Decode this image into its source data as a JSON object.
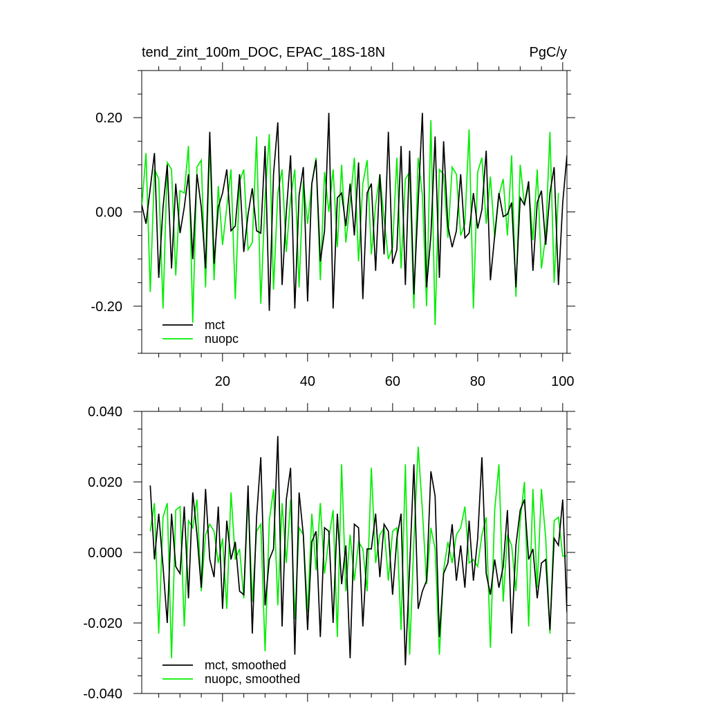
{
  "chart_data": [
    {
      "type": "line",
      "title": "tend_zint_100m_DOC, EPAC_18S-18N",
      "units": "PgC/y",
      "xlim": [
        1,
        101
      ],
      "ylim": [
        -0.3,
        0.3
      ],
      "x_ticks": [
        20,
        40,
        60,
        80,
        100
      ],
      "y_ticks": [
        0.2,
        0.0,
        -0.2
      ],
      "y_tick_labels": [
        "0.20",
        "0.00",
        "-0.20"
      ],
      "legend": {
        "placement": "bottom-left"
      },
      "colors": {
        "mct": "#000000",
        "nuopc": "#00ee00"
      },
      "x_start": 1,
      "x_step": 1,
      "series": [
        {
          "name": "mct",
          "color": "#000000",
          "values": [
            0.015,
            -0.025,
            0.05,
            0.125,
            -0.14,
            0.01,
            0.1,
            -0.12,
            0.06,
            -0.045,
            0.01,
            0.08,
            -0.1,
            0.08,
            0.01,
            -0.12,
            0.17,
            -0.11,
            0.01,
            0.04,
            0.09,
            -0.04,
            -0.03,
            0.08,
            -0.085,
            -0.005,
            0.05,
            -0.04,
            -0.045,
            0.14,
            -0.21,
            0.08,
            0.19,
            -0.155,
            0.0,
            0.12,
            -0.205,
            0.035,
            0.095,
            -0.19,
            0.06,
            0.11,
            -0.105,
            -0.04,
            0.21,
            -0.205,
            0.03,
            0.04,
            -0.03,
            0.06,
            -0.05,
            0.105,
            -0.185,
            0.04,
            0.06,
            -0.125,
            0.08,
            -0.09,
            0.17,
            -0.11,
            -0.08,
            0.14,
            -0.155,
            0.13,
            -0.175,
            0.02,
            0.21,
            -0.16,
            -0.05,
            0.16,
            -0.14,
            0.15,
            -0.03,
            -0.075,
            -0.04,
            0.08,
            -0.055,
            -0.045,
            0.04,
            -0.035,
            0.005,
            0.13,
            -0.145,
            -0.05,
            0.04,
            -0.01,
            -0.005,
            0.02,
            -0.16,
            0.03,
            0.015,
            0.065,
            -0.125,
            0.02,
            0.045,
            -0.07,
            0.04,
            0.095,
            -0.155,
            0.02,
            0.12,
            -0.165
          ]
        },
        {
          "name": "nuopc",
          "color": "#00ee00",
          "values": [
            0.01,
            0.125,
            -0.17,
            0.09,
            0.07,
            -0.205,
            0.105,
            0.09,
            -0.135,
            0.045,
            0.04,
            0.14,
            -0.235,
            0.095,
            0.11,
            -0.16,
            0.145,
            -0.145,
            0.055,
            -0.07,
            0.01,
            0.09,
            -0.185,
            0.065,
            0.09,
            -0.08,
            -0.065,
            0.16,
            -0.195,
            0.03,
            0.165,
            -0.165,
            0.04,
            0.09,
            -0.085,
            0.03,
            0.09,
            -0.16,
            0.065,
            -0.025,
            0.06,
            0.115,
            -0.145,
            0.085,
            0.0,
            0.09,
            -0.075,
            0.1,
            -0.065,
            0.02,
            0.115,
            -0.105,
            0.06,
            0.11,
            -0.09,
            0.015,
            0.08,
            -0.015,
            -0.1,
            -0.075,
            0.115,
            -0.12,
            0.07,
            0.085,
            -0.205,
            0.115,
            0.035,
            -0.2,
            0.195,
            -0.24,
            0.09,
            0.08,
            -0.055,
            0.095,
            0.08,
            -0.05,
            -0.025,
            0.175,
            -0.205,
            0.085,
            0.115,
            -0.025,
            0.075,
            -0.055,
            0.035,
            0.07,
            -0.05,
            0.12,
            -0.18,
            0.1,
            0.015,
            0.055,
            -0.06,
            0.09,
            -0.12,
            -0.05,
            0.17,
            -0.15,
            0.04
          ]
        }
      ]
    },
    {
      "type": "line",
      "title": "",
      "xlim": [
        1,
        101
      ],
      "ylim": [
        -0.04,
        0.04
      ],
      "x_ticks": [
        20,
        40,
        60,
        80,
        100
      ],
      "y_ticks": [
        0.04,
        0.02,
        0.0,
        -0.02,
        -0.04
      ],
      "y_tick_labels": [
        "0.040",
        "0.020",
        "0.000",
        "-0.020",
        "-0.040"
      ],
      "legend": {
        "placement": "bottom-left"
      },
      "x_start": 3,
      "x_step": 1,
      "series": [
        {
          "name": "mct, smoothed",
          "color": "#000000",
          "values": [
            0.019,
            -0.002,
            0.011,
            -0.004,
            -0.02,
            0.011,
            -0.004,
            -0.006,
            0.013,
            -0.013,
            0.017,
            0.005,
            -0.01,
            0.018,
            -0.002,
            -0.007,
            0.013,
            -0.016,
            0.009,
            -0.002,
            0.003,
            -0.011,
            -0.012,
            0.019,
            -0.023,
            0.01,
            0.027,
            -0.015,
            -0.002,
            0.001,
            0.033,
            -0.021,
            0.015,
            0.024,
            -0.029,
            0.017,
            0.005,
            -0.022,
            0.003,
            0.006,
            -0.024,
            0.007,
            0.006,
            -0.02,
            0.011,
            -0.009,
            0.002,
            -0.03,
            0.008,
            0.007,
            -0.021,
            0.001,
            0.001,
            0.011,
            -0.007,
            0.008,
            0.006,
            -0.012,
            0.004,
            0.011,
            -0.032,
            -0.004,
            0.025,
            -0.016,
            -0.011,
            -0.008,
            0.023,
            0.016,
            -0.024,
            -0.006,
            -0.003,
            0.008,
            -0.008,
            0.002,
            -0.01,
            0.009,
            -0.008,
            0.004,
            0.027,
            -0.006,
            -0.012,
            -0.002,
            -0.01,
            -0.004,
            0.012,
            -0.023,
            0.002,
            0.012,
            0.015,
            -0.002,
            0.001,
            -0.013,
            -0.003,
            -0.002,
            -0.022,
            0.004,
            0.002,
            0.015,
            -0.017
          ]
        },
        {
          "name": "nuopc, smoothed",
          "color": "#00ee00",
          "values": [
            0.006,
            0.014,
            -0.023,
            0.01,
            0.014,
            -0.03,
            0.012,
            0.013,
            -0.021,
            0.009,
            0.007,
            0.015,
            -0.011,
            0.005,
            0.008,
            0.006,
            -0.003,
            0.004,
            -0.016,
            0.017,
            -0.002,
            0.001,
            -0.013,
            0.016,
            -0.014,
            0.006,
            0.008,
            -0.028,
            0.009,
            0.018,
            -0.015,
            0.014,
            -0.003,
            0.015,
            -0.019,
            0.007,
            0.005,
            -0.017,
            0.011,
            -0.005,
            0.014,
            -0.006,
            0.004,
            0.012,
            -0.024,
            0.025,
            -0.011,
            0.005,
            -0.008,
            0.003,
            0.001,
            -0.011,
            0.024,
            -0.003,
            0.005,
            0.007,
            -0.008,
            0.006,
            0.007,
            -0.022,
            0.025,
            -0.029,
            0.003,
            0.03,
            0.012,
            -0.009,
            0.007,
            0.001,
            -0.029,
            -0.005,
            0.003,
            -0.003,
            0.005,
            0.007,
            0.013,
            -0.003,
            -0.002,
            -0.004,
            0.005,
            0.01,
            -0.027,
            0.012,
            0.025,
            -0.014,
            0.005,
            0.002,
            -0.011,
            0.009,
            0.02,
            -0.021,
            0.018,
            -0.01,
            0.018,
            0.004,
            -0.023,
            0.009,
            0.01,
            -0.001,
            -0.001
          ]
        }
      ]
    }
  ]
}
